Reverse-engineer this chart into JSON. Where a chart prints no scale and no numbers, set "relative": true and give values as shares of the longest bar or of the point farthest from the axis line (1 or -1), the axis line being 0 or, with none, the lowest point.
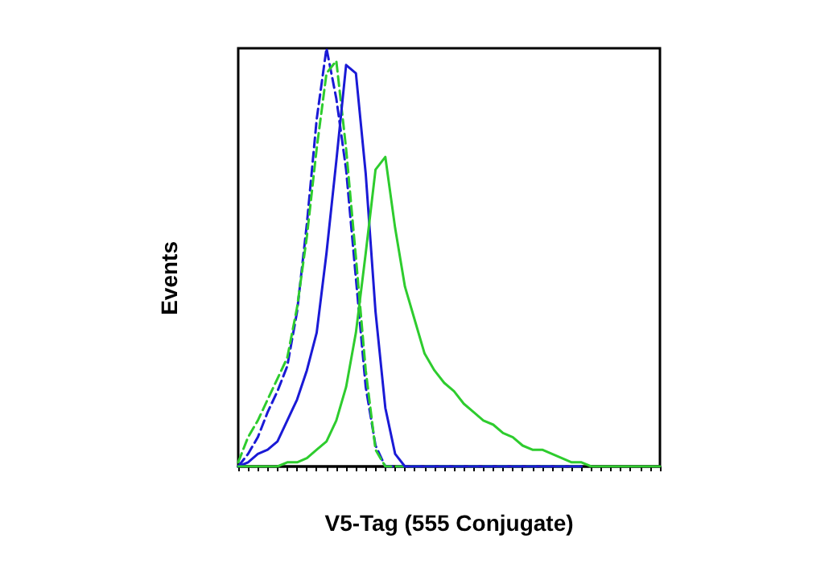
{
  "chart_data": {
    "type": "line",
    "relative": true,
    "xlabel": "V5-Tag (555 Conjugate)",
    "ylabel": "Events",
    "grid": false,
    "categories": [
      null,
      null,
      null,
      null,
      null,
      null,
      null,
      null,
      null,
      null,
      null,
      null,
      null,
      null,
      null,
      null,
      null,
      null,
      null,
      null,
      null,
      null,
      null,
      null,
      null,
      null,
      null,
      null,
      null,
      null,
      null,
      null,
      null,
      null,
      null,
      null,
      null,
      null,
      null,
      null,
      null,
      null,
      null,
      null
    ],
    "series": [
      {
        "color": "#1a1ad6",
        "line_style": "dashed",
        "values": [
          0,
          0.03,
          0.07,
          0.13,
          0.18,
          0.24,
          0.37,
          0.58,
          0.83,
          1,
          0.88,
          0.71,
          0.45,
          0.19,
          0.05,
          0,
          0,
          0,
          0,
          0,
          0,
          0,
          0,
          0,
          0,
          0,
          0,
          0,
          0,
          0,
          0,
          0,
          0,
          0,
          0,
          0,
          null,
          null,
          null,
          null,
          null,
          null,
          null,
          null
        ]
      },
      {
        "color": "#2ecc2e",
        "line_style": "dashed",
        "values": [
          0.01,
          0.07,
          0.11,
          0.16,
          0.21,
          0.26,
          0.38,
          0.55,
          0.76,
          0.94,
          0.97,
          0.76,
          0.5,
          0.23,
          0.04,
          0,
          0,
          0,
          0,
          0,
          0,
          0,
          0,
          0,
          0,
          0,
          0,
          0,
          0,
          0,
          0,
          0,
          0,
          0,
          0,
          0,
          null,
          null,
          null,
          null,
          null,
          null,
          null,
          null
        ]
      },
      {
        "color": "#1a1ad6",
        "line_style": "solid",
        "values": [
          0,
          0.01,
          0.03,
          0.04,
          0.06,
          0.11,
          0.16,
          0.23,
          0.32,
          0.51,
          0.73,
          0.96,
          0.94,
          0.7,
          0.37,
          0.14,
          0.03,
          0,
          0,
          0,
          0,
          0,
          0,
          0,
          0,
          0,
          0,
          0,
          0,
          0,
          0,
          0,
          0,
          0,
          0,
          0,
          null,
          null,
          null,
          null,
          null,
          null,
          null,
          null
        ]
      },
      {
        "color": "#2ecc2e",
        "line_style": "solid",
        "values": [
          0,
          0,
          0,
          0,
          0,
          0.01,
          0.01,
          0.02,
          0.04,
          0.06,
          0.11,
          0.19,
          0.32,
          0.51,
          0.71,
          0.74,
          0.57,
          0.43,
          0.35,
          0.27,
          0.23,
          0.2,
          0.18,
          0.15,
          0.13,
          0.11,
          0.1,
          0.08,
          0.07,
          0.05,
          0.04,
          0.04,
          0.03,
          0.02,
          0.01,
          0.01,
          0,
          0,
          0,
          0,
          0,
          0,
          0,
          0
        ]
      }
    ]
  }
}
